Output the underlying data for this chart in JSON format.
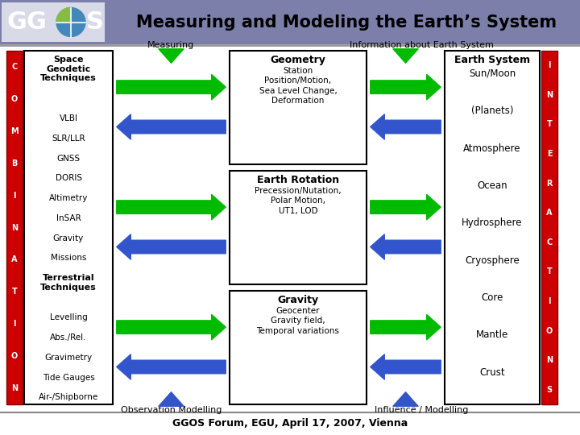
{
  "title": "Measuring and Modeling the Earth’s System",
  "footer": "GGOS Forum, EGU, April 17, 2007, Vienna",
  "header_bg": "#7b7faa",
  "combination_letters": [
    "C",
    "O",
    "M",
    "B",
    "I",
    "N",
    "A",
    "T",
    "I",
    "O",
    "N"
  ],
  "interactions_letters": [
    "I",
    "N",
    "T",
    "E",
    "R",
    "A",
    "C",
    "T",
    "I",
    "O",
    "N",
    "S"
  ],
  "left_box_content": [
    {
      "text": "Space\nGeodetic\nTechniques",
      "bold": true
    },
    {
      "text": "VLBI",
      "bold": false
    },
    {
      "text": "SLR/LLR",
      "bold": false
    },
    {
      "text": "GNSS",
      "bold": false
    },
    {
      "text": "DORIS",
      "bold": false
    },
    {
      "text": "Altimetry",
      "bold": false
    },
    {
      "text": "InSAR",
      "bold": false
    },
    {
      "text": "Gravity",
      "bold": false
    },
    {
      "text": "Missions",
      "bold": false
    },
    {
      "text": "Terrestrial\nTechniques",
      "bold": true
    },
    {
      "text": "Levelling",
      "bold": false
    },
    {
      "text": "Abs./Rel.",
      "bold": false
    },
    {
      "text": "Gravimetry",
      "bold": false
    },
    {
      "text": "Tide Gauges",
      "bold": false
    },
    {
      "text": "Air-/Shipborne",
      "bold": false
    }
  ],
  "center_boxes": [
    {
      "title": "Geometry",
      "content": "Station\nPosition/Motion,\nSea Level Change,\nDeformation"
    },
    {
      "title": "Earth Rotation",
      "content": "Precession/Nutation,\nPolar Motion,\nUT1, LOD"
    },
    {
      "title": "Gravity",
      "content": "Geocenter\nGravity field,\nTemporal variations"
    }
  ],
  "right_box_title": "Earth System",
  "right_box_items": [
    "Sun/Moon",
    "(Planets)",
    "Atmosphere",
    "Ocean",
    "Hydrosphere",
    "Cryosphere",
    "Core",
    "Mantle",
    "Crust"
  ],
  "measuring_label": "Measuring",
  "info_label": "Information about Earth System",
  "obs_label": "Observation Modelling",
  "influence_label": "Influence / Modelling",
  "arrow_green": "#00bb00",
  "arrow_blue": "#3355cc",
  "red_color": "#cc0000"
}
